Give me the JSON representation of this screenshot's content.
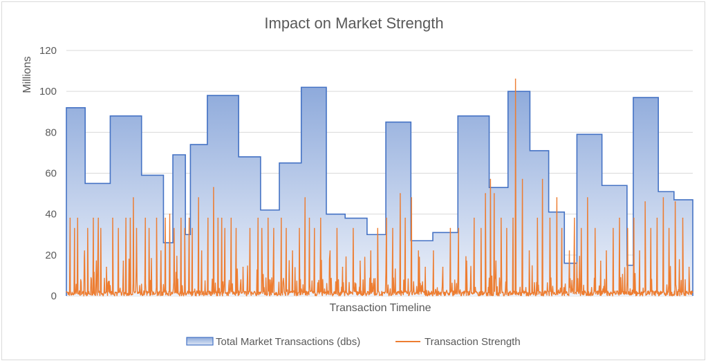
{
  "chart_data": {
    "type": "area",
    "title": "Impact on Market Strength",
    "xlabel": "Transaction Timeline",
    "ylabel": "Millions",
    "ylim": [
      0,
      120
    ],
    "yticks": [
      0,
      20,
      40,
      60,
      80,
      100,
      120
    ],
    "grid": true,
    "legend_position": "bottom",
    "series": [
      {
        "name": "Total Market Transactions (dbs)",
        "type": "step-area",
        "color": "#4472c4",
        "steps": [
          {
            "start": 0,
            "end": 3,
            "value": 92
          },
          {
            "start": 3,
            "end": 7,
            "value": 55
          },
          {
            "start": 7,
            "end": 12,
            "value": 88
          },
          {
            "start": 12,
            "end": 15.5,
            "value": 59
          },
          {
            "start": 15.5,
            "end": 17,
            "value": 26
          },
          {
            "start": 17,
            "end": 19,
            "value": 69
          },
          {
            "start": 19,
            "end": 19.8,
            "value": 30
          },
          {
            "start": 19.8,
            "end": 22.5,
            "value": 74
          },
          {
            "start": 22.5,
            "end": 27.5,
            "value": 98
          },
          {
            "start": 27.5,
            "end": 31,
            "value": 68
          },
          {
            "start": 31,
            "end": 34,
            "value": 42
          },
          {
            "start": 34,
            "end": 37.5,
            "value": 65
          },
          {
            "start": 37.5,
            "end": 41.5,
            "value": 102
          },
          {
            "start": 41.5,
            "end": 44.5,
            "value": 40
          },
          {
            "start": 44.5,
            "end": 48,
            "value": 38
          },
          {
            "start": 48,
            "end": 51,
            "value": 30
          },
          {
            "start": 51,
            "end": 55,
            "value": 85
          },
          {
            "start": 55,
            "end": 58.5,
            "value": 27
          },
          {
            "start": 58.5,
            "end": 62.5,
            "value": 31
          },
          {
            "start": 62.5,
            "end": 67.5,
            "value": 88
          },
          {
            "start": 67.5,
            "end": 70.5,
            "value": 53
          },
          {
            "start": 70.5,
            "end": 74,
            "value": 100
          },
          {
            "start": 74,
            "end": 77,
            "value": 71
          },
          {
            "start": 77,
            "end": 79.5,
            "value": 41
          },
          {
            "start": 79.5,
            "end": 81.5,
            "value": 16
          },
          {
            "start": 81.5,
            "end": 85.5,
            "value": 79
          },
          {
            "start": 85.5,
            "end": 89.5,
            "value": 54
          },
          {
            "start": 89.5,
            "end": 90.5,
            "value": 15
          },
          {
            "start": 90.5,
            "end": 94.5,
            "value": 97
          },
          {
            "start": 94.5,
            "end": 97,
            "value": 51
          },
          {
            "start": 97,
            "end": 100,
            "value": 47
          }
        ]
      },
      {
        "name": "Transaction Strength",
        "type": "line",
        "color": "#ed7d31",
        "spikes": [
          {
            "x": 0.6,
            "value": 38
          },
          {
            "x": 1.3,
            "value": 33
          },
          {
            "x": 1.8,
            "value": 38
          },
          {
            "x": 2.9,
            "value": 22
          },
          {
            "x": 3.4,
            "value": 33
          },
          {
            "x": 4.3,
            "value": 38
          },
          {
            "x": 5.1,
            "value": 38
          },
          {
            "x": 5.5,
            "value": 33
          },
          {
            "x": 6.4,
            "value": 14
          },
          {
            "x": 7.4,
            "value": 38
          },
          {
            "x": 8.3,
            "value": 33
          },
          {
            "x": 9.1,
            "value": 17
          },
          {
            "x": 9.5,
            "value": 38
          },
          {
            "x": 10.2,
            "value": 38
          },
          {
            "x": 10.7,
            "value": 48
          },
          {
            "x": 11.2,
            "value": 33
          },
          {
            "x": 12.6,
            "value": 38
          },
          {
            "x": 13.2,
            "value": 33
          },
          {
            "x": 14.4,
            "value": 38
          },
          {
            "x": 15.1,
            "value": 22
          },
          {
            "x": 15.8,
            "value": 38
          },
          {
            "x": 16.5,
            "value": 40
          },
          {
            "x": 17.2,
            "value": 33
          },
          {
            "x": 18.3,
            "value": 38
          },
          {
            "x": 18.9,
            "value": 33
          },
          {
            "x": 19.6,
            "value": 38
          },
          {
            "x": 20.1,
            "value": 33
          },
          {
            "x": 21.1,
            "value": 48
          },
          {
            "x": 21.6,
            "value": 22
          },
          {
            "x": 22.6,
            "value": 38
          },
          {
            "x": 23.5,
            "value": 53
          },
          {
            "x": 24.2,
            "value": 38
          },
          {
            "x": 24.8,
            "value": 38
          },
          {
            "x": 25.3,
            "value": 33
          },
          {
            "x": 26.3,
            "value": 38
          },
          {
            "x": 27.1,
            "value": 33
          },
          {
            "x": 28.2,
            "value": 14
          },
          {
            "x": 29.3,
            "value": 33
          },
          {
            "x": 30.6,
            "value": 38
          },
          {
            "x": 31.2,
            "value": 33
          },
          {
            "x": 32.2,
            "value": 38
          },
          {
            "x": 33.1,
            "value": 33
          },
          {
            "x": 34.3,
            "value": 38
          },
          {
            "x": 35.1,
            "value": 33
          },
          {
            "x": 36.1,
            "value": 22
          },
          {
            "x": 37.2,
            "value": 33
          },
          {
            "x": 38.1,
            "value": 48
          },
          {
            "x": 38.8,
            "value": 38
          },
          {
            "x": 39.6,
            "value": 33
          },
          {
            "x": 40.6,
            "value": 38
          },
          {
            "x": 42.1,
            "value": 22
          },
          {
            "x": 43.2,
            "value": 33
          },
          {
            "x": 44.1,
            "value": 14
          },
          {
            "x": 45.8,
            "value": 33
          },
          {
            "x": 46.9,
            "value": 17
          },
          {
            "x": 48.6,
            "value": 22
          },
          {
            "x": 49.7,
            "value": 33
          },
          {
            "x": 51.1,
            "value": 38
          },
          {
            "x": 52.1,
            "value": 33
          },
          {
            "x": 53.3,
            "value": 50
          },
          {
            "x": 54.1,
            "value": 38
          },
          {
            "x": 55.1,
            "value": 48
          },
          {
            "x": 56.2,
            "value": 22
          },
          {
            "x": 57.3,
            "value": 14
          },
          {
            "x": 58.6,
            "value": 22
          },
          {
            "x": 60.1,
            "value": 14
          },
          {
            "x": 61.3,
            "value": 33
          },
          {
            "x": 62.6,
            "value": 33
          },
          {
            "x": 63.9,
            "value": 17
          },
          {
            "x": 65.1,
            "value": 38
          },
          {
            "x": 66.2,
            "value": 33
          },
          {
            "x": 66.9,
            "value": 50
          },
          {
            "x": 67.7,
            "value": 57
          },
          {
            "x": 68.3,
            "value": 50
          },
          {
            "x": 69.4,
            "value": 38
          },
          {
            "x": 70.3,
            "value": 33
          },
          {
            "x": 71.3,
            "value": 38
          },
          {
            "x": 71.7,
            "value": 106
          },
          {
            "x": 72.8,
            "value": 57
          },
          {
            "x": 73.9,
            "value": 22
          },
          {
            "x": 75.2,
            "value": 38
          },
          {
            "x": 76.0,
            "value": 57
          },
          {
            "x": 77.2,
            "value": 38
          },
          {
            "x": 78.3,
            "value": 48
          },
          {
            "x": 79.1,
            "value": 33
          },
          {
            "x": 80.3,
            "value": 22
          },
          {
            "x": 81.1,
            "value": 38
          },
          {
            "x": 82.2,
            "value": 33
          },
          {
            "x": 83.2,
            "value": 48
          },
          {
            "x": 84.4,
            "value": 33
          },
          {
            "x": 85.3,
            "value": 17
          },
          {
            "x": 86.2,
            "value": 22
          },
          {
            "x": 87.3,
            "value": 33
          },
          {
            "x": 88.3,
            "value": 38
          },
          {
            "x": 89.6,
            "value": 33
          },
          {
            "x": 90.6,
            "value": 38
          },
          {
            "x": 91.5,
            "value": 22
          },
          {
            "x": 92.4,
            "value": 46
          },
          {
            "x": 93.3,
            "value": 33
          },
          {
            "x": 94.3,
            "value": 38
          },
          {
            "x": 95.3,
            "value": 48
          },
          {
            "x": 96.2,
            "value": 33
          },
          {
            "x": 97.2,
            "value": 46
          },
          {
            "x": 98.4,
            "value": 38
          },
          {
            "x": 99.4,
            "value": 14
          }
        ]
      }
    ]
  }
}
